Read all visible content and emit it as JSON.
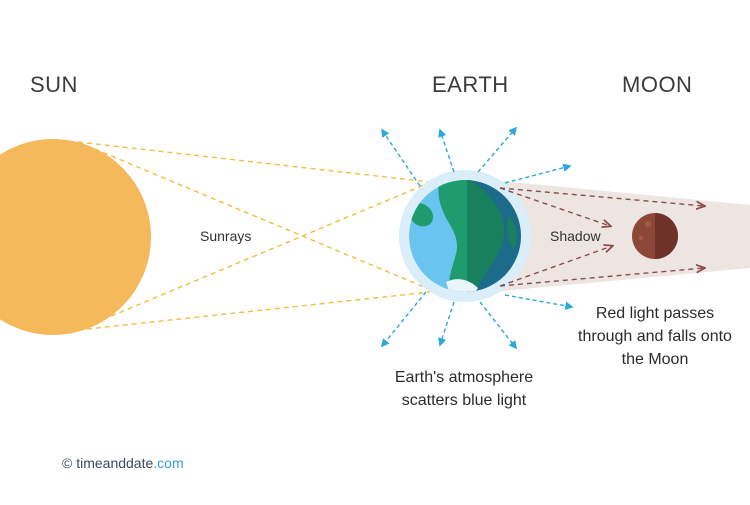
{
  "labels": {
    "sun": "SUN",
    "earth": "EARTH",
    "moon": "MOON",
    "sunrays": "Sunrays",
    "shadow": "Shadow",
    "red_light": "Red light passes through and falls onto the Moon",
    "atmosphere": "Earth's atmosphere scatters blue light"
  },
  "credit": {
    "symbol": "©",
    "name": "timeanddate",
    "tld": ".com"
  },
  "colors": {
    "sun": "#f4b95b",
    "sunray": "#f2bd45",
    "scatter": "#29a8d9",
    "shadow": "#ece5e2",
    "red_ray": "#8e4b4b",
    "moon": "#8d4737",
    "ocean": "#69c4ef",
    "ocean_dark": "#1c6b8a",
    "land": "#1e9c6e",
    "land_dark": "#18805c",
    "halo": "#d9eef8",
    "credit_text": "#3b4a5a",
    "credit_brand": "#3a9bd6"
  }
}
